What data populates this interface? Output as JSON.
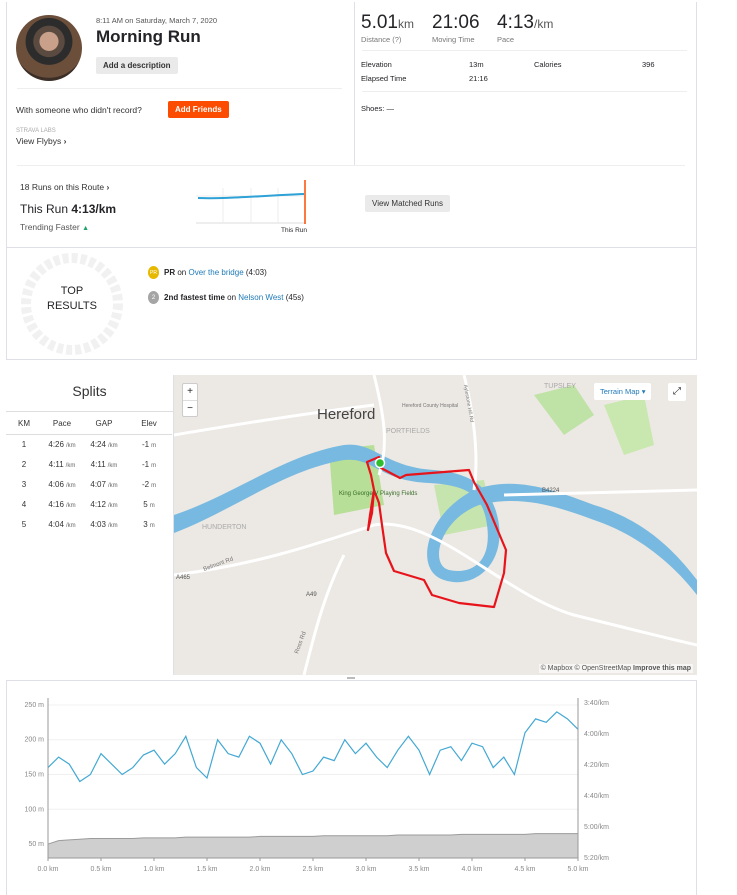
{
  "activity": {
    "datetime": "8:11 AM on Saturday, March 7, 2020",
    "title": "Morning Run",
    "add_description": "Add a description",
    "with_someone": "With someone who didn't record?",
    "add_friends": "Add Friends",
    "labs_label": "STRAVA LABS",
    "view_flybys": "View Flybys"
  },
  "stats": {
    "distance": "5.01",
    "distance_unit": "km",
    "distance_label": "Distance (?)",
    "moving_time": "21:06",
    "moving_time_label": "Moving Time",
    "pace": "4:13",
    "pace_unit": "/km",
    "pace_label": "Pace",
    "elevation_label": "Elevation",
    "elevation": "13m",
    "calories_label": "Calories",
    "calories": "396",
    "elapsed_label": "Elapsed Time",
    "elapsed": "21:16",
    "shoes_label": "Shoes:",
    "shoes": "—"
  },
  "route": {
    "runs_on_route": "18 Runs on this Route",
    "this_run_label": "This Run",
    "this_run_pace": "4:13/km",
    "trending": "Trending Faster",
    "this_run_marker": "This Run",
    "view_matched": "View Matched Runs"
  },
  "results": {
    "top_line1": "TOP",
    "top_line2": "RESULTS",
    "items": [
      {
        "badge": "PR",
        "prefix": "PR",
        "on": "on",
        "segment": "Over the bridge",
        "time": "(4:03)"
      },
      {
        "badge": "2",
        "prefix": "2nd fastest time",
        "on": "on",
        "segment": "Nelson West",
        "time": "(45s)"
      }
    ]
  },
  "splits": {
    "title": "Splits",
    "headers": [
      "KM",
      "Pace",
      "GAP",
      "Elev"
    ],
    "rows": [
      [
        "1",
        "4:26",
        "4:24",
        "-1"
      ],
      [
        "2",
        "4:11",
        "4:11",
        "-1"
      ],
      [
        "3",
        "4:06",
        "4:07",
        "-2"
      ],
      [
        "4",
        "4:16",
        "4:12",
        "5"
      ],
      [
        "5",
        "4:04",
        "4:03",
        "3"
      ]
    ],
    "pace_unit": "/km",
    "elev_unit": "m"
  },
  "map": {
    "city": "Hereford",
    "hospital": "Hereford County Hospital",
    "portfields": "PORTFIELDS",
    "park": "King George V Playing Fields",
    "hunderton": "HUNDERTON",
    "tupsley": "TUPSLEY",
    "belmont": "Belmont Rd",
    "ross": "Ross Rd",
    "a49": "A49",
    "a465": "A465",
    "b4224": "B4224",
    "aylestone": "Aylestone Hill Rd",
    "terrain_button": "Terrain Map",
    "zoom_in": "+",
    "zoom_out": "−",
    "attribution_mapbox": "© Mapbox",
    "attribution_osm": "© OpenStreetMap",
    "improve": "Improve this map"
  },
  "chart_data": {
    "type": "area",
    "x": [
      0,
      0.1,
      0.2,
      0.3,
      0.4,
      0.5,
      0.6,
      0.7,
      0.8,
      0.9,
      1.0,
      1.1,
      1.2,
      1.3,
      1.4,
      1.5,
      1.6,
      1.7,
      1.8,
      1.9,
      2.0,
      2.1,
      2.2,
      2.3,
      2.4,
      2.5,
      2.6,
      2.7,
      2.8,
      2.9,
      3.0,
      3.1,
      3.2,
      3.3,
      3.4,
      3.5,
      3.6,
      3.7,
      3.8,
      3.9,
      4.0,
      4.1,
      4.2,
      4.3,
      4.4,
      4.5,
      4.6,
      4.7,
      4.8,
      4.9,
      5.0
    ],
    "series": [
      {
        "values": [
          160,
          175,
          165,
          140,
          150,
          180,
          165,
          150,
          160,
          178,
          185,
          165,
          180,
          205,
          160,
          145,
          200,
          180,
          175,
          205,
          195,
          165,
          200,
          180,
          150,
          155,
          175,
          170,
          200,
          180,
          195,
          175,
          160,
          185,
          205,
          185,
          150,
          185,
          190,
          170,
          195,
          190,
          160,
          175,
          150,
          210,
          230,
          225,
          240,
          230,
          215
        ]
      },
      {
        "values": [
          50,
          55,
          56,
          57,
          58,
          58,
          58,
          58,
          58,
          59,
          59,
          59,
          59,
          60,
          60,
          60,
          60,
          60,
          60,
          60,
          61,
          61,
          61,
          61,
          61,
          61,
          62,
          62,
          62,
          62,
          62,
          62,
          62,
          63,
          63,
          63,
          63,
          63,
          63,
          64,
          64,
          64,
          64,
          64,
          64,
          64,
          65,
          65,
          65,
          65,
          65
        ]
      }
    ],
    "xlabel": "",
    "ylabel": "",
    "xticks": [
      "0.0 km",
      "0.5 km",
      "1.0 km",
      "1.5 km",
      "2.0 km",
      "2.5 km",
      "3.0 km",
      "3.5 km",
      "4.0 km",
      "4.5 km",
      "5.0 km"
    ],
    "yticks_left": [
      "250 m",
      "200 m",
      "150 m",
      "100 m",
      "50 m"
    ],
    "yticks_right": [
      "3:40/km",
      "4:00/km",
      "4:20/km",
      "4:40/km",
      "5:00/km",
      "5:20/km"
    ],
    "xlim": [
      0,
      5.0
    ],
    "ylim": [
      30,
      260
    ],
    "colors": {
      "pace": "#43a8d3",
      "elevation": "#cfcfcf"
    }
  }
}
